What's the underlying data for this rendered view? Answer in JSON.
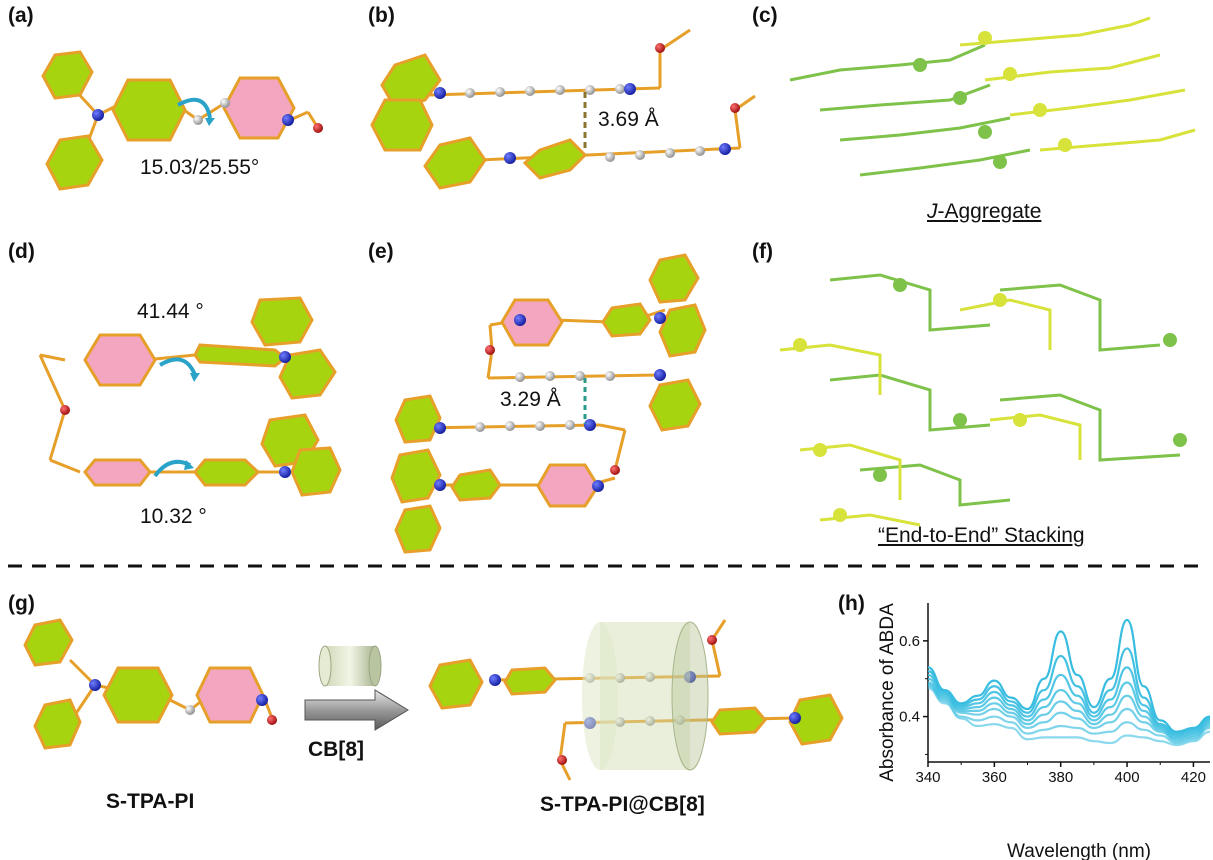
{
  "panels": {
    "a": {
      "label": "(a)",
      "angle": "15.03/25.55°"
    },
    "b": {
      "label": "(b)",
      "distance": "3.69 Å"
    },
    "c": {
      "label": "(c)",
      "caption_italic": "J",
      "caption_rest": "-Aggregate"
    },
    "d": {
      "label": "(d)",
      "angle_top": "41.44 °",
      "angle_bottom": "10.32 °"
    },
    "e": {
      "label": "(e)",
      "distance": "3.29 Å"
    },
    "f": {
      "label": "(f)",
      "caption": "“End-to-End” Stacking"
    },
    "g": {
      "label": "(g)",
      "reagent": "CB[8]",
      "left_name": "S-TPA-PI",
      "right_name": "S-TPA-PI@CB[8]"
    },
    "h": {
      "label": "(h)"
    }
  },
  "colors": {
    "ring_green": "#a6d50f",
    "ring_pink": "#f4a6c0",
    "bond": "#e6a02a",
    "nitrogen": "#1f2fd0",
    "oxygen": "#d01818",
    "carbon": "#b8b8b8",
    "hydrogen": "#f2f2f2",
    "arrow_cyan": "#2aa3c8",
    "stack_green": "#7ec24a",
    "stack_yellow": "#d7e23a",
    "spectrum": "#38bde0"
  },
  "chart_data": {
    "type": "line",
    "title": "",
    "xlabel": "Wavelength (nm)",
    "ylabel": "Absorbance of ABDA",
    "xlim": [
      340,
      425
    ],
    "ylim": [
      0.28,
      0.7
    ],
    "xticks": [
      340,
      360,
      380,
      400,
      420
    ],
    "yticks": [
      0.4,
      0.6
    ],
    "x": [
      340,
      345,
      350,
      355,
      360,
      365,
      370,
      375,
      380,
      385,
      390,
      395,
      400,
      405,
      410,
      415,
      420,
      425
    ],
    "series": [
      {
        "values": [
          0.53,
          0.47,
          0.435,
          0.455,
          0.495,
          0.45,
          0.42,
          0.5,
          0.625,
          0.51,
          0.425,
          0.5,
          0.655,
          0.48,
          0.39,
          0.36,
          0.37,
          0.4
        ]
      },
      {
        "values": [
          0.52,
          0.465,
          0.43,
          0.445,
          0.48,
          0.44,
          0.41,
          0.47,
          0.56,
          0.48,
          0.41,
          0.47,
          0.58,
          0.45,
          0.38,
          0.355,
          0.365,
          0.395
        ]
      },
      {
        "values": [
          0.51,
          0.46,
          0.425,
          0.435,
          0.465,
          0.43,
          0.4,
          0.445,
          0.51,
          0.455,
          0.4,
          0.445,
          0.53,
          0.43,
          0.375,
          0.35,
          0.36,
          0.39
        ]
      },
      {
        "values": [
          0.5,
          0.455,
          0.42,
          0.425,
          0.45,
          0.42,
          0.39,
          0.425,
          0.47,
          0.435,
          0.39,
          0.425,
          0.49,
          0.415,
          0.37,
          0.345,
          0.355,
          0.385
        ]
      },
      {
        "values": [
          0.49,
          0.45,
          0.415,
          0.415,
          0.435,
          0.41,
          0.38,
          0.405,
          0.44,
          0.415,
          0.38,
          0.405,
          0.455,
          0.4,
          0.365,
          0.34,
          0.35,
          0.38
        ]
      },
      {
        "values": [
          0.485,
          0.445,
          0.41,
          0.405,
          0.42,
          0.4,
          0.37,
          0.385,
          0.41,
          0.395,
          0.37,
          0.385,
          0.42,
          0.385,
          0.36,
          0.335,
          0.345,
          0.375
        ]
      },
      {
        "values": [
          0.48,
          0.44,
          0.4,
          0.39,
          0.4,
          0.385,
          0.355,
          0.365,
          0.375,
          0.37,
          0.355,
          0.36,
          0.385,
          0.365,
          0.35,
          0.33,
          0.34,
          0.37
        ]
      },
      {
        "values": [
          0.475,
          0.435,
          0.395,
          0.375,
          0.38,
          0.37,
          0.34,
          0.345,
          0.345,
          0.345,
          0.335,
          0.33,
          0.35,
          0.345,
          0.335,
          0.325,
          0.335,
          0.36
        ]
      }
    ]
  }
}
